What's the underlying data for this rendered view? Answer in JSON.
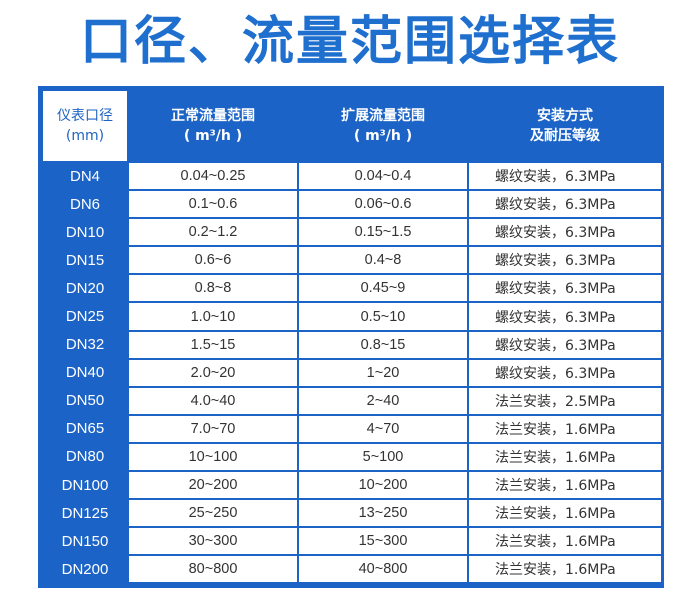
{
  "title": "口径、流量范围选择表",
  "headers": {
    "col1_line1": "仪表口径",
    "col1_line2": "(mm)",
    "col2_line1": "正常流量范围",
    "col2_line2": "( m³/h )",
    "col3_line1": "扩展流量范围",
    "col3_line2": "( m³/h )",
    "col4_line1": "安装方式",
    "col4_line2": "及耐压等级"
  },
  "rows": [
    {
      "dn": "DN4",
      "normal": "0.04~0.25",
      "extended": "0.04~0.4",
      "install": "螺纹安装，6.3MPa"
    },
    {
      "dn": "DN6",
      "normal": "0.1~0.6",
      "extended": "0.06~0.6",
      "install": "螺纹安装，6.3MPa"
    },
    {
      "dn": "DN10",
      "normal": "0.2~1.2",
      "extended": "0.15~1.5",
      "install": "螺纹安装，6.3MPa"
    },
    {
      "dn": "DN15",
      "normal": "0.6~6",
      "extended": "0.4~8",
      "install": "螺纹安装，6.3MPa"
    },
    {
      "dn": "DN20",
      "normal": "0.8~8",
      "extended": "0.45~9",
      "install": "螺纹安装，6.3MPa"
    },
    {
      "dn": "DN25",
      "normal": "1.0~10",
      "extended": "0.5~10",
      "install": "螺纹安装，6.3MPa"
    },
    {
      "dn": "DN32",
      "normal": "1.5~15",
      "extended": "0.8~15",
      "install": "螺纹安装，6.3MPa"
    },
    {
      "dn": "DN40",
      "normal": "2.0~20",
      "extended": "1~20",
      "install": "螺纹安装，6.3MPa"
    },
    {
      "dn": "DN50",
      "normal": "4.0~40",
      "extended": "2~40",
      "install": "法兰安装，2.5MPa"
    },
    {
      "dn": "DN65",
      "normal": "7.0~70",
      "extended": "4~70",
      "install": "法兰安装，1.6MPa"
    },
    {
      "dn": "DN80",
      "normal": "10~100",
      "extended": "5~100",
      "install": "法兰安装，1.6MPa"
    },
    {
      "dn": "DN100",
      "normal": "20~200",
      "extended": "10~200",
      "install": "法兰安装，1.6MPa"
    },
    {
      "dn": "DN125",
      "normal": "25~250",
      "extended": "13~250",
      "install": "法兰安装，1.6MPa"
    },
    {
      "dn": "DN150",
      "normal": "30~300",
      "extended": "15~300",
      "install": "法兰安装，1.6MPa"
    },
    {
      "dn": "DN200",
      "normal": "80~800",
      "extended": "40~800",
      "install": "法兰安装，1.6MPa"
    }
  ],
  "colors": {
    "title": "#1f6fce",
    "header_bg": "#1b63c6",
    "header_text": "#ffffff",
    "cell_bg": "#ffffff"
  }
}
